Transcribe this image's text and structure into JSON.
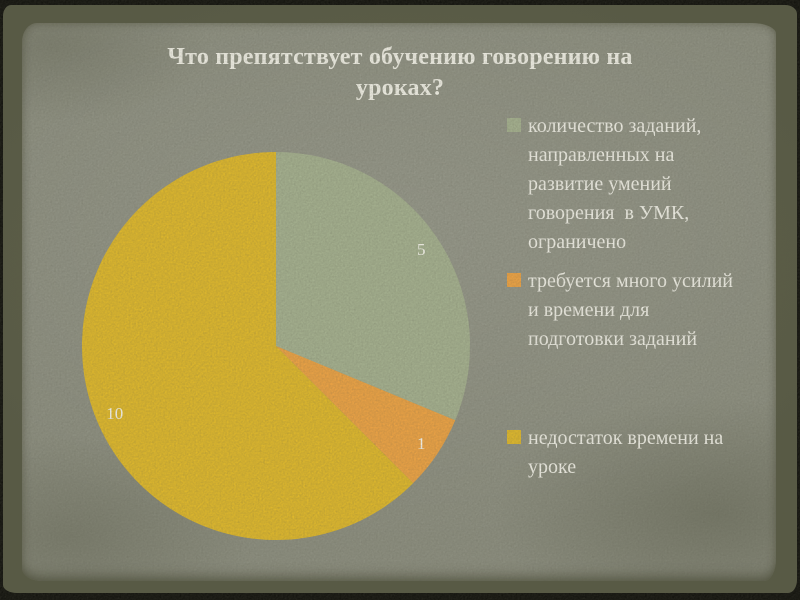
{
  "slide": {
    "title": "Что препятствует обучению говорению на уроках?",
    "title_lines": [
      "Что препятствует обучению говорению на",
      "уроках?"
    ]
  },
  "chart_data": {
    "type": "pie",
    "title": "Что препятствует обучению говорению на уроках?",
    "labels": [
      "количество заданий, направленных на развитие умений говорения  в УМК, ограничено",
      "требуется много усилий и времени для подготовки заданий",
      "недостаток времени на уроке"
    ],
    "values": [
      5,
      1,
      10
    ],
    "data_labels": [
      "5",
      "1",
      "10"
    ],
    "colors": [
      "#a7b391",
      "#f1a544",
      "#e3bb2b"
    ],
    "start_angle_deg": 0,
    "direction": "clockwise",
    "legend_position": "right",
    "value_label_color": "#fbfaf1",
    "label_radius_ratio": 0.9
  },
  "legend": {
    "items": [
      {
        "label": "количество заданий, направленных на развитие умений говорения  в УМК, ограничено",
        "color": "#a7b391"
      },
      {
        "label": "требуется много усилий и времени для подготовки заданий",
        "color": "#f1a544"
      },
      {
        "label": "недостаток времени на уроке",
        "color": "#e3bb2b"
      }
    ]
  },
  "theme": {
    "paper_color": "#8e9081",
    "border_olive": "#585a44",
    "frame_black": "#11110c",
    "text_color": "#f5f4ea"
  }
}
